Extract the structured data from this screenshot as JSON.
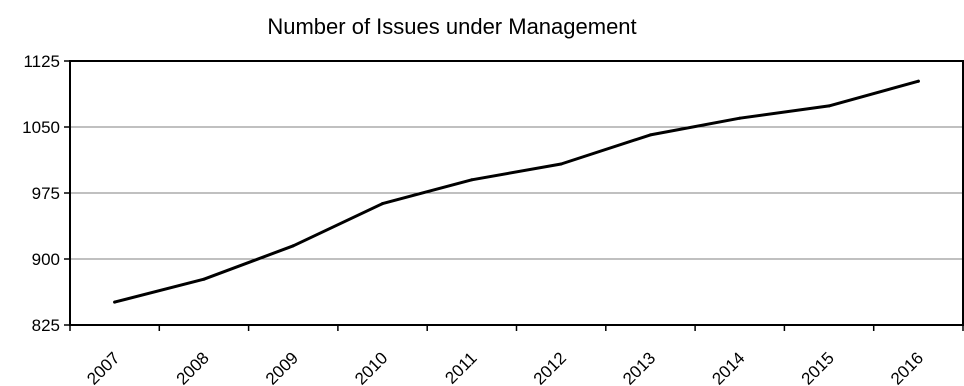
{
  "chart_data": {
    "type": "line",
    "title": "Number of Issues under Management",
    "xlabel": "",
    "ylabel": "",
    "categories": [
      "2007",
      "2008",
      "2009",
      "2010",
      "2011",
      "2012",
      "2013",
      "2014",
      "2015",
      "2016"
    ],
    "series": [
      {
        "values": [
          851,
          877,
          915,
          963,
          990,
          1008,
          1041,
          1060,
          1074,
          1102
        ],
        "color": "#000000"
      }
    ],
    "ylim": [
      825,
      1125
    ],
    "yticks": [
      "825",
      "900",
      "975",
      "1050",
      "1125"
    ],
    "grid": true,
    "legend": "none"
  }
}
